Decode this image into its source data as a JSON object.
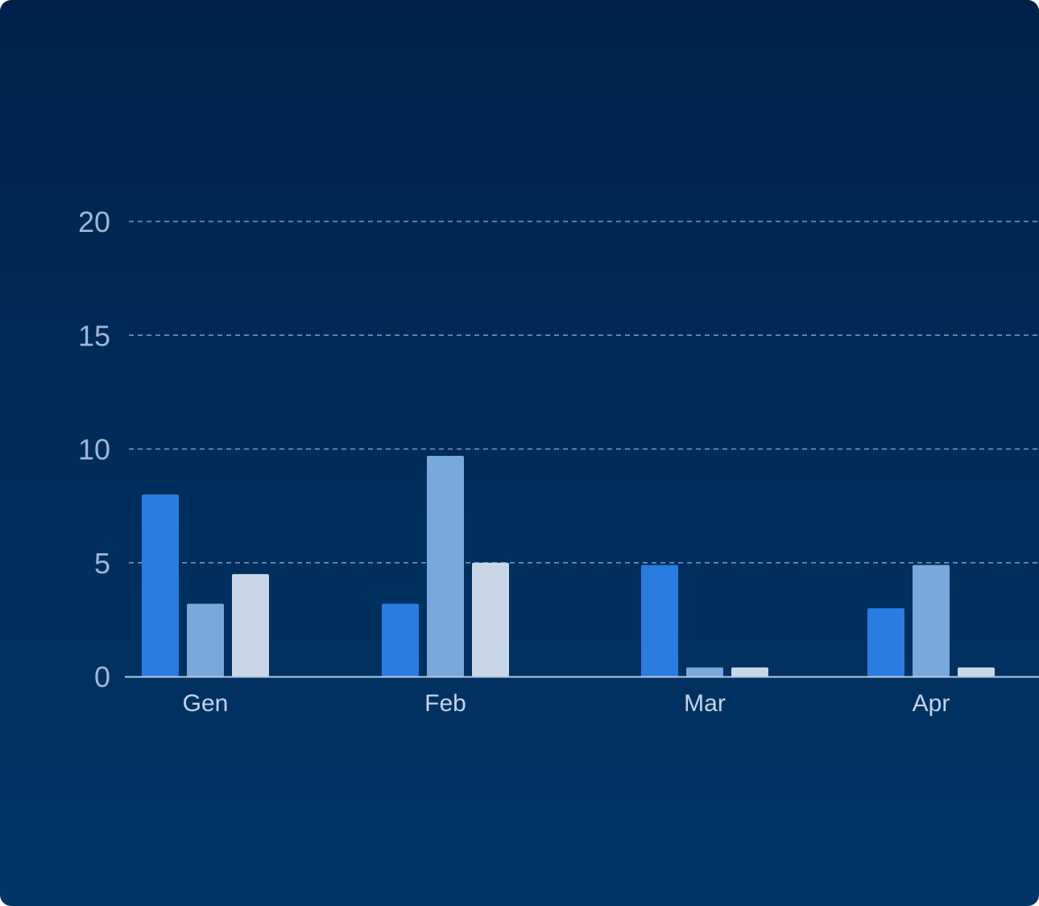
{
  "chart_data": {
    "type": "bar",
    "categories": [
      "Gen",
      "Feb",
      "Mar",
      "Apr"
    ],
    "series": [
      {
        "values": [
          8,
          3.2,
          4.9,
          3
        ],
        "color": "#2a7ce0"
      },
      {
        "values": [
          3.2,
          9.7,
          0.4,
          4.9
        ],
        "color": "#79a8dc"
      },
      {
        "values": [
          4.5,
          5,
          0.4,
          0.4
        ],
        "color": "#c9d6e6"
      }
    ],
    "yticks": [
      "0",
      "5",
      "10",
      "15",
      "20"
    ],
    "ylim": [
      0,
      20
    ],
    "grid": true,
    "legend": "none",
    "title": "",
    "xlabel": "",
    "ylabel": ""
  },
  "colors": {
    "background_top": "#002249",
    "background_bottom": "#003566",
    "grid": "#a9c1e2",
    "axis": "#b9cbe4"
  }
}
